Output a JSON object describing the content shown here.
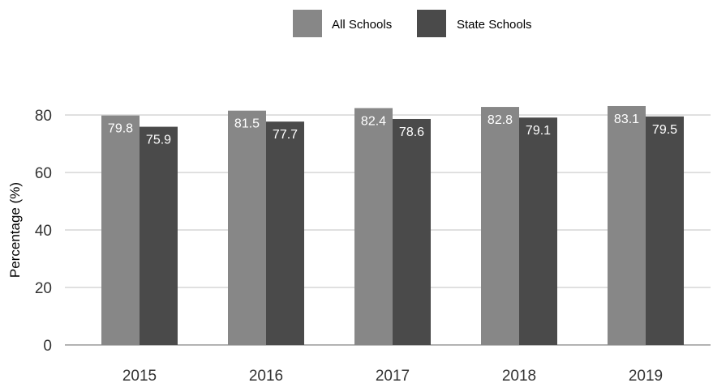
{
  "chart_data": {
    "type": "bar",
    "categories": [
      "2015",
      "2016",
      "2017",
      "2018",
      "2019"
    ],
    "series": [
      {
        "name": "All Schools",
        "color": "#878787",
        "values": [
          79.8,
          81.5,
          82.4,
          82.8,
          83.1
        ]
      },
      {
        "name": "State Schools",
        "color": "#4a4a4a",
        "values": [
          75.9,
          77.7,
          78.6,
          79.1,
          79.5
        ]
      }
    ],
    "ylabel": "Percentage (%)",
    "yticks": [
      0,
      20,
      40,
      60,
      80
    ],
    "ylim": [
      0,
      80
    ],
    "grid": true,
    "legend": "top-center",
    "grid_color": "#c0c0c0",
    "axis_color": "#9a9a9a"
  }
}
